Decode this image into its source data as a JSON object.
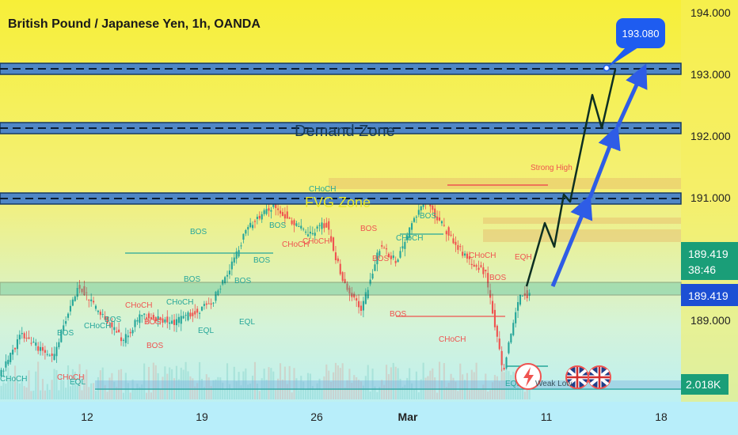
{
  "header": {
    "title": "British Pound / Japanese Yen, 1h, OANDA"
  },
  "colors": {
    "bg_top": "#f7ee3a",
    "bg_bottom": "#b9f0ff",
    "up": "#26a69a",
    "down": "#ef5350",
    "zone_blue": "#4f86c6",
    "arrow_blue": "#2e5ce6",
    "path_dark": "#103a2a",
    "price_box": "#1a9e78",
    "label_bubble": "#1e5cf0"
  },
  "zone_labels": {
    "demand": "Demand Zone",
    "fvg": "FVG Zone",
    "strong_high": "Strong High",
    "weak_low": "Weak Low"
  },
  "target_bubble": "193.080",
  "price_panel": {
    "last_price": "189.419",
    "countdown": "38:46",
    "line_price": "189.419",
    "volume": "2.018K"
  },
  "smc_labels": {
    "choch": "CHoCH",
    "bos": "BOS",
    "eql": "EQL",
    "eqh": "EQH"
  },
  "chart_data": {
    "type": "candlestick",
    "title": "British Pound / Japanese Yen, 1h, OANDA",
    "x_ticks": [
      "12",
      "19",
      "26",
      "Mar",
      "11",
      "18"
    ],
    "y_ticks": [
      "189.000",
      "191.000",
      "192.000",
      "193.000",
      "194.000"
    ],
    "ylim": [
      187.9,
      194.1
    ],
    "price_path": [
      {
        "t": 0,
        "p": 188.1
      },
      {
        "t": 5,
        "p": 188.8
      },
      {
        "t": 12,
        "p": 188.4
      },
      {
        "t": 18,
        "p": 189.6
      },
      {
        "t": 22,
        "p": 189.2
      },
      {
        "t": 28,
        "p": 188.7
      },
      {
        "t": 32,
        "p": 189.1
      },
      {
        "t": 40,
        "p": 189.0
      },
      {
        "t": 48,
        "p": 189.3
      },
      {
        "t": 52,
        "p": 189.8
      },
      {
        "t": 56,
        "p": 190.5
      },
      {
        "t": 62,
        "p": 190.9
      },
      {
        "t": 70,
        "p": 190.4
      },
      {
        "t": 74,
        "p": 190.6
      },
      {
        "t": 78,
        "p": 189.6
      },
      {
        "t": 82,
        "p": 189.2
      },
      {
        "t": 86,
        "p": 190.2
      },
      {
        "t": 90,
        "p": 190.0
      },
      {
        "t": 96,
        "p": 191.0
      },
      {
        "t": 102,
        "p": 190.4
      },
      {
        "t": 106,
        "p": 190.0
      },
      {
        "t": 110,
        "p": 189.8
      },
      {
        "t": 114,
        "p": 188.2
      },
      {
        "t": 118,
        "p": 189.5
      },
      {
        "t": 120,
        "p": 189.419
      }
    ],
    "zones": [
      {
        "name": "Demand Zone",
        "low": 193.0,
        "high": 193.15
      },
      {
        "name": "Demand Zone",
        "low": 192.05,
        "high": 192.2
      },
      {
        "name": "Demand Zone",
        "low": 190.92,
        "high": 191.07
      },
      {
        "name": "Demand Zone",
        "low": 189.33,
        "high": 189.52
      }
    ],
    "projection_path": [
      189.419,
      190.3,
      189.9,
      191.0,
      192.2,
      193.08
    ],
    "target": 193.08,
    "last_price": 189.419,
    "volume": "2.018K"
  }
}
